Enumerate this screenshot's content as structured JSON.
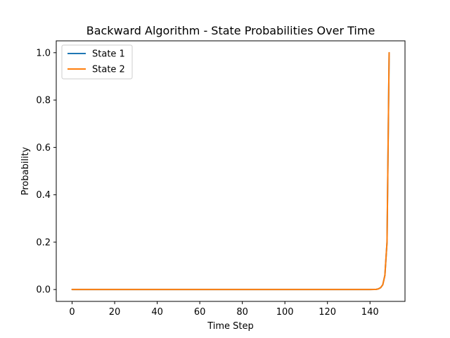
{
  "chart_data": {
    "type": "line",
    "title": "Backward Algorithm - State Probabilities Over Time",
    "xlabel": "Time Step",
    "ylabel": "Probability",
    "xlim": [
      -7.45,
      156.45
    ],
    "ylim": [
      -0.05,
      1.05
    ],
    "x_ticks": [
      0,
      20,
      40,
      60,
      80,
      100,
      120,
      140
    ],
    "y_ticks": [
      0.0,
      0.2,
      0.4,
      0.6,
      0.8,
      1.0
    ],
    "x_tick_labels": [
      "0",
      "20",
      "40",
      "60",
      "80",
      "100",
      "120",
      "140"
    ],
    "y_tick_labels": [
      "0.0",
      "0.2",
      "0.4",
      "0.6",
      "0.8",
      "1.0"
    ],
    "grid": false,
    "legend_position": "top-left",
    "series": [
      {
        "name": "State 1",
        "color": "#1f77b4",
        "x": [
          0,
          10,
          20,
          30,
          40,
          50,
          60,
          70,
          80,
          90,
          100,
          110,
          120,
          130,
          140,
          142,
          143,
          144,
          145,
          146,
          147,
          148,
          149
        ],
        "y": [
          0,
          0,
          0,
          0,
          0,
          0,
          0,
          0,
          0,
          0,
          0,
          0,
          0,
          0,
          0,
          0.0005,
          0.001,
          0.003,
          0.008,
          0.02,
          0.06,
          0.2,
          1.0
        ]
      },
      {
        "name": "State 2",
        "color": "#ff7f0e",
        "x": [
          0,
          10,
          20,
          30,
          40,
          50,
          60,
          70,
          80,
          90,
          100,
          110,
          120,
          130,
          140,
          142,
          143,
          144,
          145,
          146,
          147,
          148,
          149
        ],
        "y": [
          0,
          0,
          0,
          0,
          0,
          0,
          0,
          0,
          0,
          0,
          0,
          0,
          0,
          0,
          0,
          0.0005,
          0.001,
          0.003,
          0.008,
          0.02,
          0.06,
          0.2,
          1.0
        ]
      }
    ]
  }
}
